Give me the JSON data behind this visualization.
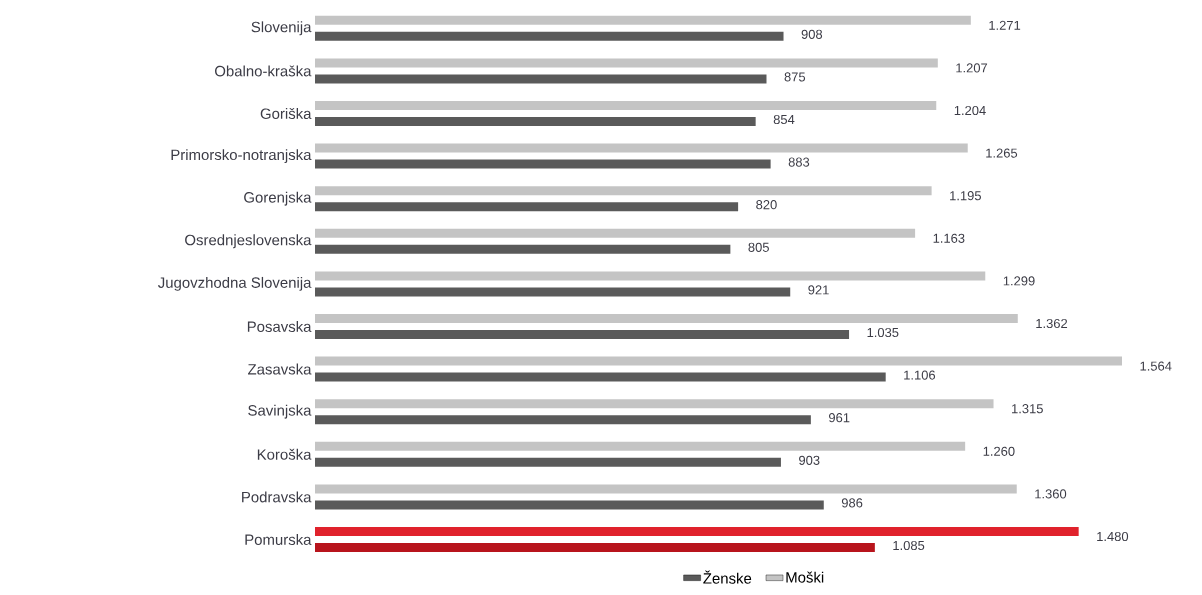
{
  "chart_data": {
    "type": "bar",
    "orientation": "horizontal",
    "legend": "bottom",
    "tick_labels": "y",
    "categories": [
      "Slovenija",
      "Obalno-kraška",
      "Goriška",
      "Primorsko-notranjska",
      "Gorenjska",
      "Osrednjeslovenska",
      "Jugovzhodna Slovenija",
      "Posavska",
      "Zasavska",
      "Savinjska",
      "Koroška",
      "Podravska",
      "Pomurska"
    ],
    "series": [
      {
        "name": "Ženske",
        "color": "#5a5a5a",
        "colors": [
          "#5a5a5a",
          "#5a5a5a",
          "#5a5a5a",
          "#5a5a5a",
          "#5a5a5a",
          "#5a5a5a",
          "#5a5a5a",
          "#5a5a5a",
          "#5a5a5a",
          "#5a5a5a",
          "#5a5a5a",
          "#5a5a5a",
          "#b8141c"
        ],
        "values": [
          908,
          875,
          854,
          883,
          820,
          805,
          921,
          1035,
          1106,
          961,
          903,
          986,
          1085
        ],
        "value_labels": [
          "908",
          "875",
          "854",
          "883",
          "820",
          "805",
          "921",
          "1.035",
          "1.106",
          "961",
          "903",
          "986",
          "1.085"
        ]
      },
      {
        "name": "Moški",
        "color": "#c4c4c4",
        "colors": [
          "#c4c4c4",
          "#c4c4c4",
          "#c4c4c4",
          "#c4c4c4",
          "#c4c4c4",
          "#c4c4c4",
          "#c4c4c4",
          "#c4c4c4",
          "#c4c4c4",
          "#c4c4c4",
          "#c4c4c4",
          "#c4c4c4",
          "#e0222c"
        ],
        "values": [
          1271,
          1207,
          1204,
          1265,
          1195,
          1163,
          1299,
          1362,
          1564,
          1315,
          1260,
          1360,
          1480
        ],
        "value_labels": [
          "1.271",
          "1.207",
          "1.204",
          "1.265",
          "1.195",
          "1.163",
          "1.299",
          "1.362",
          "1.564",
          "1.315",
          "1.260",
          "1.360",
          "1.480"
        ]
      }
    ]
  }
}
